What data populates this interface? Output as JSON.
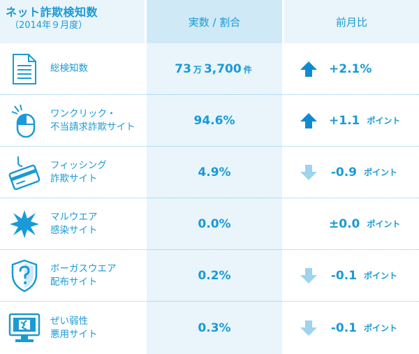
{
  "header": {
    "title": "ネット詐欺検知数",
    "subtitle": "（2014年９月度）",
    "col_count": "実数 / 割合",
    "col_change": "前月比"
  },
  "colors": {
    "accent": "#1a9ad6",
    "arrow_up": "#0f8ad2",
    "arrow_down": "#9fd3ee",
    "header_mid_bg": "#cfe9f6",
    "column_bg": "#e9f5fb"
  },
  "rows": [
    {
      "icon": "document-icon",
      "label_lines": [
        "総検知数"
      ],
      "value_main": "73",
      "value_unit1": "万",
      "value_main2": "3,700",
      "value_unit2": "件",
      "trend": "up",
      "delta": "+2.1%",
      "delta_unit": ""
    },
    {
      "icon": "mouse-click-icon",
      "label_lines": [
        "ワンクリック・",
        "不当請求詐欺サイト"
      ],
      "value": "94.6%",
      "trend": "up",
      "delta": "+1.1",
      "delta_unit": "ポイント"
    },
    {
      "icon": "fishing-card-icon",
      "label_lines": [
        "フィッシング",
        "詐欺サイト"
      ],
      "value": "4.9%",
      "trend": "down",
      "delta": "-0.9",
      "delta_unit": "ポイント"
    },
    {
      "icon": "malware-burst-icon",
      "label_lines": [
        "マルウエア",
        "感染サイト"
      ],
      "value": "0.0%",
      "trend": "none",
      "delta": "±0.0",
      "delta_unit": "ポイント"
    },
    {
      "icon": "shield-question-icon",
      "label_lines": [
        "ボーガスウエア",
        "配布サイト"
      ],
      "value": "0.2%",
      "trend": "down",
      "delta": "-0.1",
      "delta_unit": "ポイント"
    },
    {
      "icon": "monitor-broken-icon",
      "label_lines": [
        "ぜい弱性",
        "悪用サイト"
      ],
      "value": "0.3%",
      "trend": "down",
      "delta": "-0.1",
      "delta_unit": "ポイント"
    }
  ]
}
